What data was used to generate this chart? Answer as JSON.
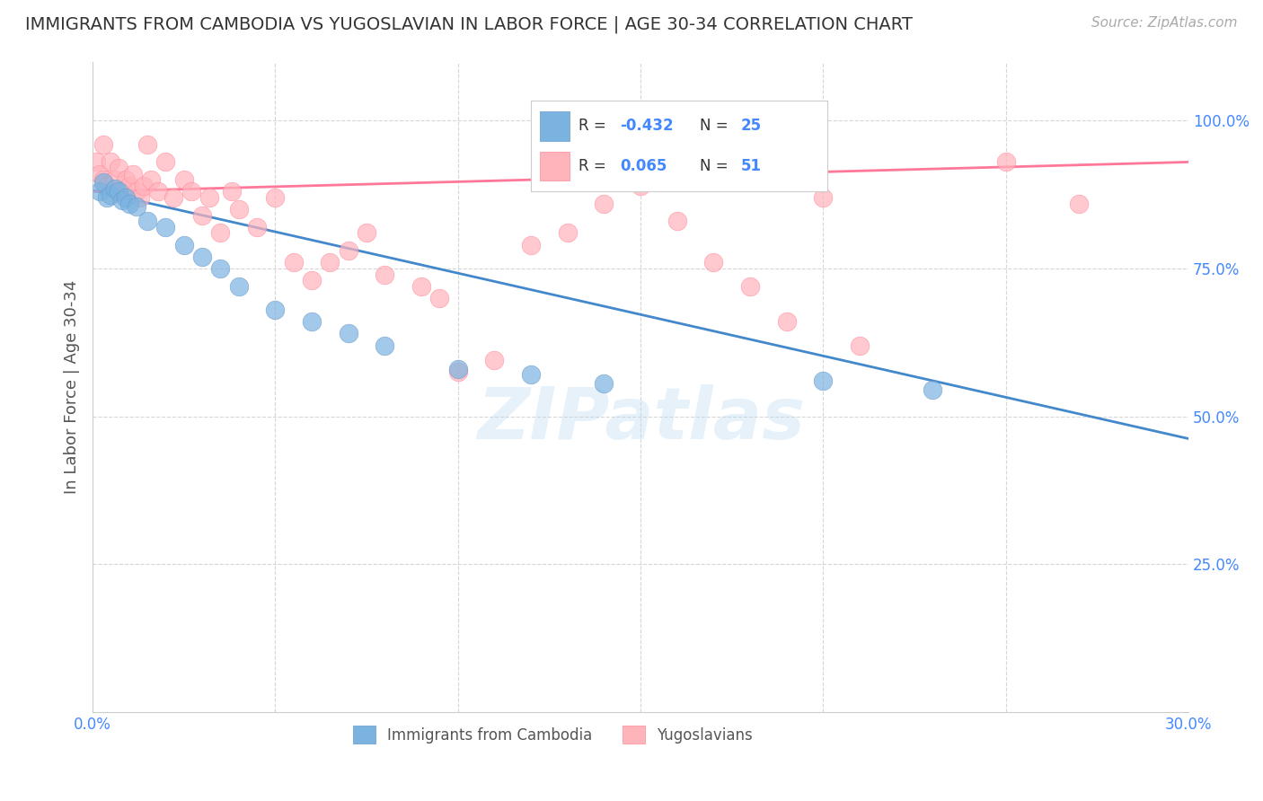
{
  "title": "IMMIGRANTS FROM CAMBODIA VS YUGOSLAVIAN IN LABOR FORCE | AGE 30-34 CORRELATION CHART",
  "source": "Source: ZipAtlas.com",
  "ylabel": "In Labor Force | Age 30-34",
  "xlim": [
    0.0,
    0.3
  ],
  "ylim": [
    0.0,
    1.1
  ],
  "ytick_positions": [
    0.25,
    0.5,
    0.75,
    1.0
  ],
  "ytick_labels": [
    "25.0%",
    "50.0%",
    "75.0%",
    "100.0%"
  ],
  "xtick_positions": [
    0.0,
    0.05,
    0.1,
    0.15,
    0.2,
    0.25,
    0.3
  ],
  "xtick_labels": [
    "0.0%",
    "",
    "",
    "",
    "",
    "",
    "30.0%"
  ],
  "cambodia_color": "#7BB3E0",
  "cambodia_edge_color": "#6699CC",
  "yugoslavian_color": "#FFB3BB",
  "yugoslavian_edge_color": "#FF8899",
  "cambodia_line_color": "#4488CC",
  "yugoslavian_line_color": "#FF7799",
  "cambodia_R": -0.432,
  "cambodia_N": 25,
  "yugoslavian_R": 0.065,
  "yugoslavian_N": 51,
  "watermark": "ZIPatlas",
  "legend_label_1": "Immigrants from Cambodia",
  "legend_label_2": "Yugoslavians",
  "cambodia_x": [
    0.002,
    0.003,
    0.004,
    0.005,
    0.006,
    0.007,
    0.008,
    0.009,
    0.01,
    0.012,
    0.015,
    0.02,
    0.025,
    0.03,
    0.035,
    0.04,
    0.05,
    0.06,
    0.07,
    0.08,
    0.1,
    0.12,
    0.14,
    0.2,
    0.23
  ],
  "cambodia_y": [
    0.88,
    0.895,
    0.87,
    0.875,
    0.885,
    0.88,
    0.865,
    0.87,
    0.86,
    0.855,
    0.83,
    0.82,
    0.79,
    0.77,
    0.75,
    0.72,
    0.68,
    0.66,
    0.64,
    0.62,
    0.58,
    0.57,
    0.555,
    0.56,
    0.545
  ],
  "yugoslavian_x": [
    0.001,
    0.002,
    0.003,
    0.003,
    0.004,
    0.005,
    0.006,
    0.007,
    0.008,
    0.009,
    0.01,
    0.011,
    0.012,
    0.013,
    0.014,
    0.015,
    0.016,
    0.018,
    0.02,
    0.022,
    0.025,
    0.027,
    0.03,
    0.032,
    0.035,
    0.038,
    0.04,
    0.045,
    0.05,
    0.055,
    0.06,
    0.065,
    0.07,
    0.075,
    0.08,
    0.09,
    0.095,
    0.1,
    0.11,
    0.12,
    0.13,
    0.14,
    0.15,
    0.16,
    0.17,
    0.18,
    0.19,
    0.2,
    0.21,
    0.25,
    0.27
  ],
  "yugoslavian_y": [
    0.93,
    0.91,
    0.96,
    0.9,
    0.89,
    0.93,
    0.9,
    0.92,
    0.88,
    0.9,
    0.89,
    0.91,
    0.88,
    0.87,
    0.89,
    0.96,
    0.9,
    0.88,
    0.93,
    0.87,
    0.9,
    0.88,
    0.84,
    0.87,
    0.81,
    0.88,
    0.85,
    0.82,
    0.87,
    0.76,
    0.73,
    0.76,
    0.78,
    0.81,
    0.74,
    0.72,
    0.7,
    0.575,
    0.595,
    0.79,
    0.81,
    0.86,
    0.89,
    0.83,
    0.76,
    0.72,
    0.66,
    0.87,
    0.62,
    0.93,
    0.86
  ]
}
